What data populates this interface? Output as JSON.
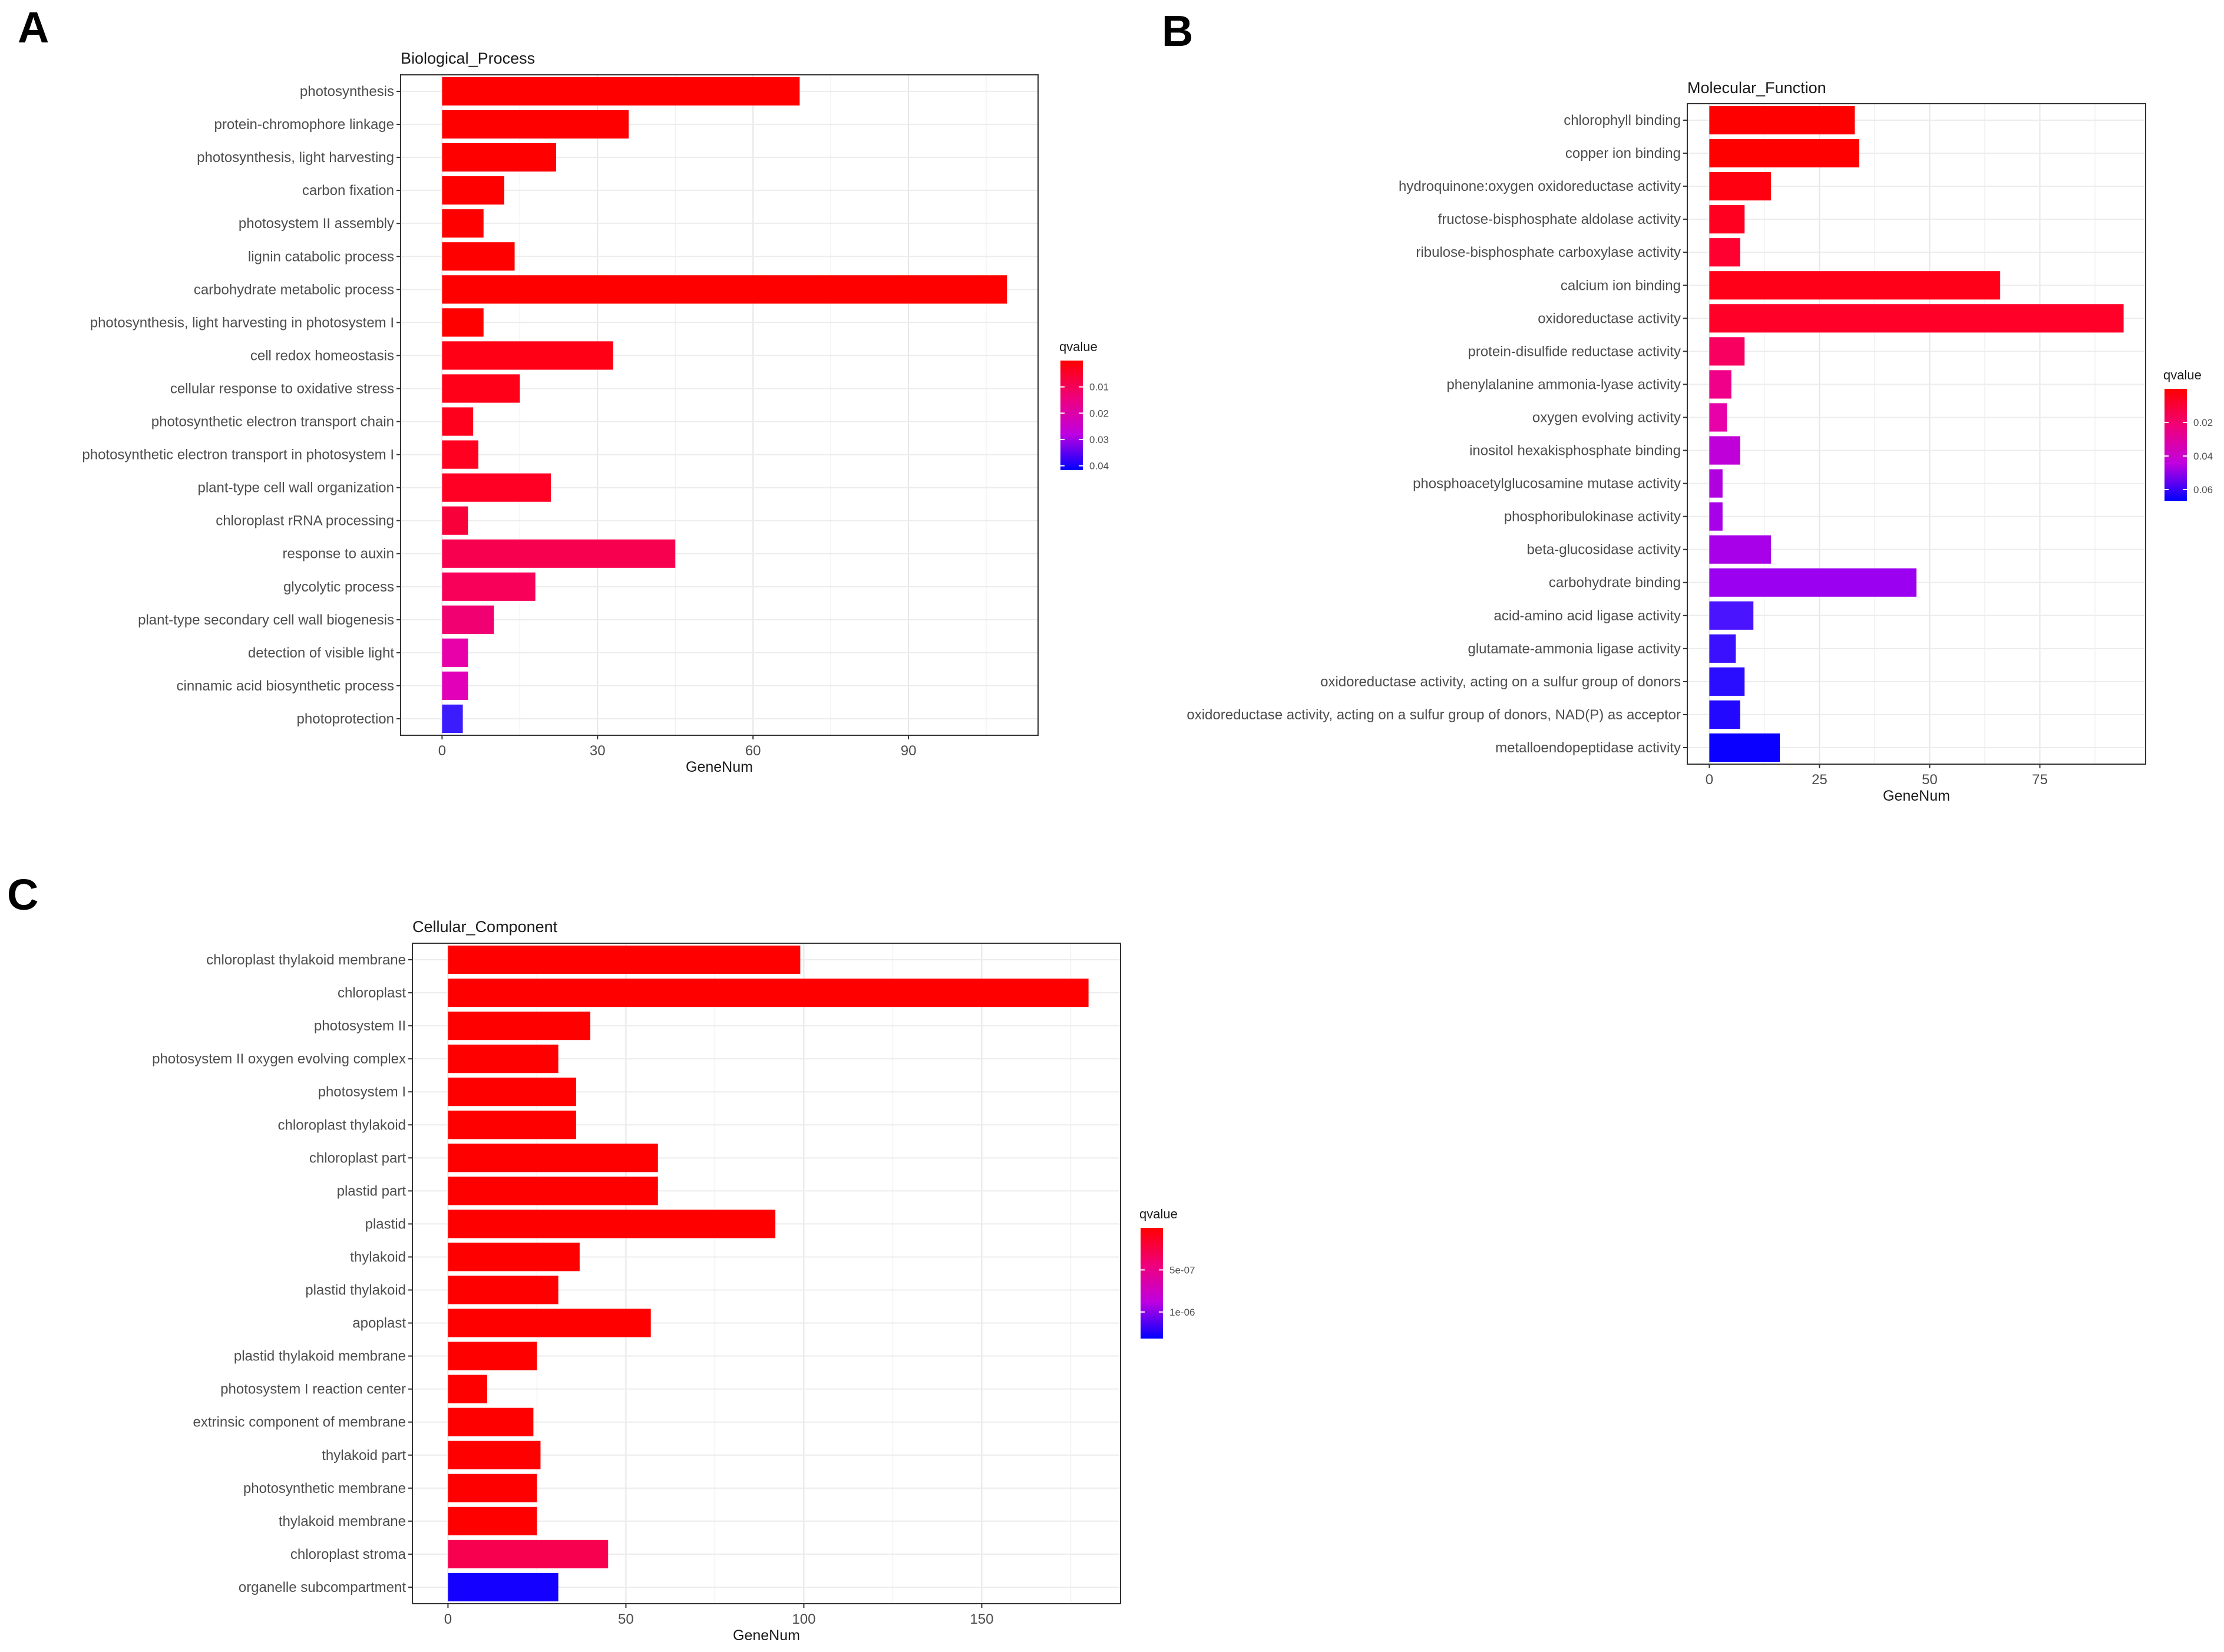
{
  "chart_data": [
    {
      "panel": "A",
      "type": "bar",
      "orientation": "horizontal",
      "title": "Biological_Process",
      "xlabel": "GeneNum",
      "ylabel": "",
      "xlim": [
        -8,
        115
      ],
      "xticks": [
        0,
        30,
        60,
        90
      ],
      "grid": true,
      "categories": [
        "photosynthesis",
        "protein-chromophore linkage",
        "photosynthesis, light harvesting",
        "carbon fixation",
        "photosystem II assembly",
        "lignin catabolic process",
        "carbohydrate metabolic process",
        "photosynthesis, light harvesting in photosystem I",
        "cell redox homeostasis",
        "cellular response to oxidative stress",
        "photosynthetic electron transport chain",
        "photosynthetic electron transport in photosystem I",
        "plant-type cell wall organization",
        "chloroplast rRNA processing",
        "response to auxin",
        "glycolytic process",
        "plant-type secondary cell wall biogenesis",
        "detection of visible light",
        "cinnamic acid biosynthetic process",
        "photoprotection"
      ],
      "values": [
        69,
        36,
        22,
        12,
        8,
        14,
        109,
        8,
        33,
        15,
        6,
        7,
        21,
        5,
        45,
        18,
        10,
        5,
        5,
        4
      ],
      "colors": [
        "#ff0000",
        "#ff0000",
        "#ff0000",
        "#ff0000",
        "#ff0000",
        "#ff0000",
        "#ff0000",
        "#ff0000",
        "#ff0014",
        "#ff0018",
        "#ff001c",
        "#ff0020",
        "#ff0024",
        "#f8003a",
        "#f80050",
        "#f8005a",
        "#f00070",
        "#e800a8",
        "#e200b8",
        "#3a1cff"
      ],
      "legend": {
        "title": "qvalue",
        "labels": [
          "0.01",
          "0.02",
          "0.03",
          "0.04"
        ],
        "positions": [
          0.24,
          0.48,
          0.72,
          0.96
        ],
        "gradient": [
          "#ff0000",
          "#f0007a",
          "#c000e0",
          "#0000ff"
        ]
      }
    },
    {
      "panel": "B",
      "type": "bar",
      "orientation": "horizontal",
      "title": "Molecular_Function",
      "xlabel": "GeneNum",
      "ylabel": "",
      "xlim": [
        -5,
        99
      ],
      "xticks": [
        0,
        25,
        50,
        75
      ],
      "grid": true,
      "categories": [
        "chlorophyll binding",
        "copper ion binding",
        "hydroquinone:oxygen oxidoreductase activity",
        "fructose-bisphosphate aldolase activity",
        "ribulose-bisphosphate carboxylase activity",
        "calcium ion binding",
        "oxidoreductase activity",
        "protein-disulfide reductase activity",
        "phenylalanine ammonia-lyase activity",
        "oxygen evolving activity",
        "inositol hexakisphosphate binding",
        "phosphoacetylglucosamine mutase activity",
        "phosphoribulokinase activity",
        "beta-glucosidase activity",
        "carbohydrate binding",
        "acid-amino acid ligase activity",
        "glutamate-ammonia ligase activity",
        "oxidoreductase activity, acting on a sulfur group of donors",
        "oxidoreductase activity, acting on a sulfur group of donors, NAD(P) as acceptor",
        "metalloendopeptidase activity"
      ],
      "values": [
        33,
        34,
        14,
        8,
        7,
        66,
        94,
        8,
        5,
        4,
        7,
        3,
        3,
        14,
        47,
        10,
        6,
        8,
        7,
        16
      ],
      "colors": [
        "#ff0000",
        "#ff0000",
        "#ff0010",
        "#ff0020",
        "#ff0030",
        "#ff0018",
        "#ff0028",
        "#f80060",
        "#f00088",
        "#e800a8",
        "#c000d8",
        "#b000e0",
        "#a800e8",
        "#a800e8",
        "#9c00f0",
        "#4a14ff",
        "#3a10ff",
        "#2a0cff",
        "#2208ff",
        "#0a00ff"
      ],
      "legend": {
        "title": "qvalue",
        "labels": [
          "0.02",
          "0.04",
          "0.06"
        ],
        "positions": [
          0.3,
          0.6,
          0.9
        ],
        "gradient": [
          "#ff0000",
          "#f0007a",
          "#c000e0",
          "#0000ff"
        ]
      }
    },
    {
      "panel": "C",
      "type": "bar",
      "orientation": "horizontal",
      "title": "Cellular_Component",
      "xlabel": "GeneNum",
      "ylabel": "",
      "xlim": [
        -10,
        189
      ],
      "xticks": [
        0,
        50,
        100,
        150
      ],
      "grid": true,
      "categories": [
        "chloroplast thylakoid membrane",
        "chloroplast",
        "photosystem II",
        "photosystem II oxygen evolving complex",
        "photosystem I",
        "chloroplast thylakoid",
        "chloroplast part",
        "plastid part",
        "plastid",
        "thylakoid",
        "plastid thylakoid",
        "apoplast",
        "plastid thylakoid membrane",
        "photosystem I reaction center",
        "extrinsic component of membrane",
        "thylakoid part",
        "photosynthetic membrane",
        "thylakoid membrane",
        "chloroplast stroma",
        "organelle subcompartment"
      ],
      "values": [
        99,
        180,
        40,
        31,
        36,
        36,
        59,
        59,
        92,
        37,
        31,
        57,
        25,
        11,
        24,
        26,
        25,
        25,
        45,
        31
      ],
      "colors": [
        "#ff0000",
        "#ff0000",
        "#ff0000",
        "#ff0000",
        "#ff0000",
        "#ff0000",
        "#ff0000",
        "#ff0000",
        "#ff0000",
        "#ff0000",
        "#ff0000",
        "#ff0000",
        "#ff0000",
        "#ff0000",
        "#ff0000",
        "#ff0000",
        "#ff0000",
        "#ff0000",
        "#f80050",
        "#1400ff"
      ],
      "legend": {
        "title": "qvalue",
        "labels": [
          "5e-07",
          "1e-06"
        ],
        "positions": [
          0.38,
          0.76
        ],
        "gradient": [
          "#ff0000",
          "#f0007a",
          "#c000e0",
          "#0000ff"
        ]
      }
    }
  ]
}
